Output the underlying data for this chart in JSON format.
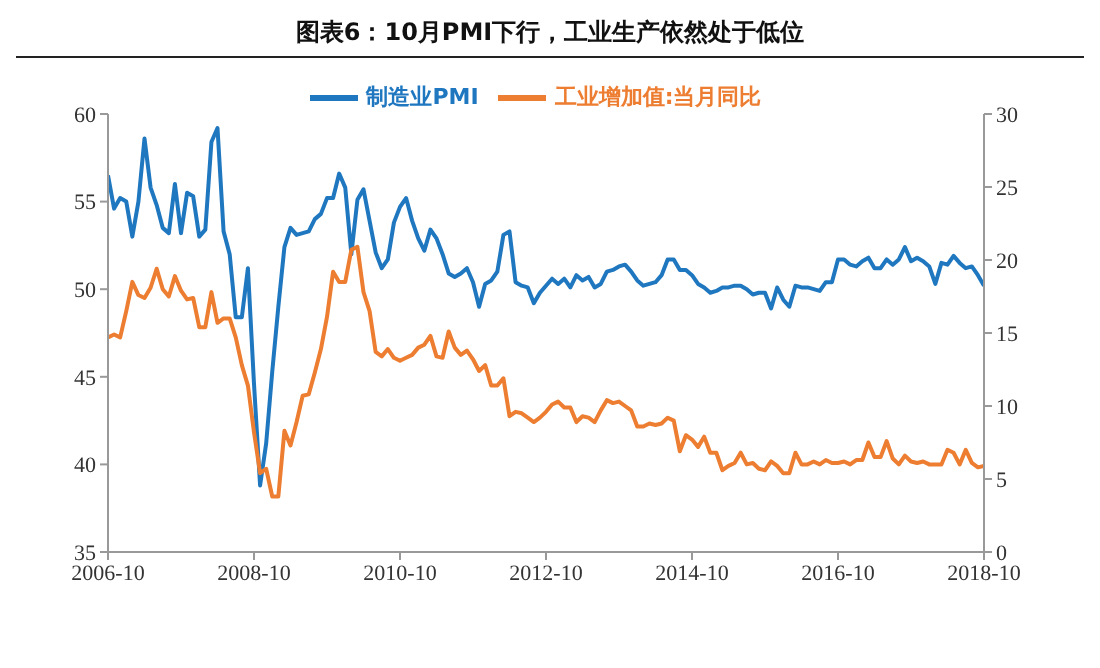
{
  "chart_data": {
    "type": "line",
    "title": "图表6：10月PMI下行，工业生产依然处于低位",
    "x": [
      "2006-10",
      "2006-11",
      "2006-12",
      "2007-01",
      "2007-02",
      "2007-03",
      "2007-04",
      "2007-05",
      "2007-06",
      "2007-07",
      "2007-08",
      "2007-09",
      "2007-10",
      "2007-11",
      "2007-12",
      "2008-01",
      "2008-02",
      "2008-03",
      "2008-04",
      "2008-05",
      "2008-06",
      "2008-07",
      "2008-08",
      "2008-09",
      "2008-10",
      "2008-11",
      "2008-12",
      "2009-01",
      "2009-02",
      "2009-03",
      "2009-04",
      "2009-05",
      "2009-06",
      "2009-07",
      "2009-08",
      "2009-09",
      "2009-10",
      "2009-11",
      "2009-12",
      "2010-01",
      "2010-02",
      "2010-03",
      "2010-04",
      "2010-05",
      "2010-06",
      "2010-07",
      "2010-08",
      "2010-09",
      "2010-10",
      "2010-11",
      "2010-12",
      "2011-01",
      "2011-02",
      "2011-03",
      "2011-04",
      "2011-05",
      "2011-06",
      "2011-07",
      "2011-08",
      "2011-09",
      "2011-10",
      "2011-11",
      "2011-12",
      "2012-01",
      "2012-02",
      "2012-03",
      "2012-04",
      "2012-05",
      "2012-06",
      "2012-07",
      "2012-08",
      "2012-09",
      "2012-10",
      "2012-11",
      "2012-12",
      "2013-01",
      "2013-02",
      "2013-03",
      "2013-04",
      "2013-05",
      "2013-06",
      "2013-07",
      "2013-08",
      "2013-09",
      "2013-10",
      "2013-11",
      "2013-12",
      "2014-01",
      "2014-02",
      "2014-03",
      "2014-04",
      "2014-05",
      "2014-06",
      "2014-07",
      "2014-08",
      "2014-09",
      "2014-10",
      "2014-11",
      "2014-12",
      "2015-01",
      "2015-02",
      "2015-03",
      "2015-04",
      "2015-05",
      "2015-06",
      "2015-07",
      "2015-08",
      "2015-09",
      "2015-10",
      "2015-11",
      "2015-12",
      "2016-01",
      "2016-02",
      "2016-03",
      "2016-04",
      "2016-05",
      "2016-06",
      "2016-07",
      "2016-08",
      "2016-09",
      "2016-10",
      "2016-11",
      "2016-12",
      "2017-01",
      "2017-02",
      "2017-03",
      "2017-04",
      "2017-05",
      "2017-06",
      "2017-07",
      "2017-08",
      "2017-09",
      "2017-10",
      "2017-11",
      "2017-12",
      "2018-01",
      "2018-02",
      "2018-03",
      "2018-04",
      "2018-05",
      "2018-06",
      "2018-07",
      "2018-08",
      "2018-09",
      "2018-10"
    ],
    "series": [
      {
        "name": "制造业PMI",
        "color": "#1f77c0",
        "values": [
          56.5,
          54.6,
          55.2,
          55.0,
          53.0,
          55.0,
          58.6,
          55.8,
          54.8,
          53.5,
          53.2,
          56.0,
          53.2,
          55.5,
          55.3,
          53.0,
          53.4,
          58.4,
          59.2,
          53.3,
          52.0,
          48.4,
          48.4,
          51.2,
          44.6,
          38.8,
          41.2,
          45.3,
          49.0,
          52.4,
          53.5,
          53.1,
          53.2,
          53.3,
          54.0,
          54.3,
          55.2,
          55.2,
          56.6,
          55.8,
          52.0,
          55.1,
          55.7,
          53.9,
          52.1,
          51.2,
          51.7,
          53.8,
          54.7,
          55.2,
          53.9,
          52.9,
          52.2,
          53.4,
          52.9,
          52.0,
          50.9,
          50.7,
          50.9,
          51.2,
          50.4,
          49.0,
          50.3,
          50.5,
          51.0,
          53.1,
          53.3,
          50.4,
          50.2,
          50.1,
          49.2,
          49.8,
          50.2,
          50.6,
          50.3,
          50.6,
          50.1,
          50.8,
          50.5,
          50.7,
          50.1,
          50.3,
          51.0,
          51.1,
          51.3,
          51.4,
          51.0,
          50.5,
          50.2,
          50.3,
          50.4,
          50.8,
          51.7,
          51.7,
          51.1,
          51.1,
          50.8,
          50.3,
          50.1,
          49.8,
          49.9,
          50.1,
          50.1,
          50.2,
          50.2,
          50.0,
          49.7,
          49.8,
          49.8,
          48.9,
          50.1,
          49.4,
          49.0,
          50.2,
          50.1,
          50.1,
          50.0,
          49.9,
          50.4,
          50.4,
          51.7,
          51.7,
          51.4,
          51.3,
          51.6,
          51.8,
          51.2,
          51.2,
          51.7,
          51.4,
          51.7,
          52.4,
          51.6,
          51.8,
          51.6,
          51.3,
          50.3,
          51.5,
          51.4,
          51.9,
          51.5,
          51.2,
          51.3,
          50.8,
          50.2
        ]
      },
      {
        "name": "工业增加值:当月同比",
        "color": "#ed7d31",
        "axis": "y2",
        "values": [
          14.7,
          14.9,
          14.7,
          16.5,
          18.5,
          17.6,
          17.4,
          18.1,
          19.4,
          18.0,
          17.5,
          18.9,
          17.9,
          17.3,
          17.4,
          15.4,
          15.4,
          17.8,
          15.7,
          16.0,
          16.0,
          14.7,
          12.8,
          11.4,
          8.2,
          5.4,
          5.7,
          3.8,
          3.8,
          8.3,
          7.3,
          8.9,
          10.7,
          10.8,
          12.3,
          13.9,
          16.1,
          19.2,
          18.5,
          18.5,
          20.7,
          20.9,
          17.8,
          16.5,
          13.7,
          13.4,
          13.9,
          13.3,
          13.1,
          13.3,
          13.5,
          14.0,
          14.2,
          14.8,
          13.4,
          13.3,
          15.1,
          14.0,
          13.5,
          13.8,
          13.2,
          12.4,
          12.8,
          11.4,
          11.4,
          11.9,
          9.3,
          9.6,
          9.5,
          9.2,
          8.9,
          9.2,
          9.6,
          10.1,
          10.3,
          9.9,
          9.9,
          8.9,
          9.3,
          9.2,
          8.9,
          9.7,
          10.4,
          10.2,
          10.3,
          10.0,
          9.7,
          8.6,
          8.6,
          8.8,
          8.7,
          8.8,
          9.2,
          9.0,
          6.9,
          8.0,
          7.7,
          7.2,
          7.9,
          6.8,
          6.8,
          5.6,
          5.9,
          6.1,
          6.8,
          6.0,
          6.1,
          5.7,
          5.6,
          6.2,
          5.9,
          5.4,
          5.4,
          6.8,
          6.0,
          6.0,
          6.2,
          6.0,
          6.3,
          6.1,
          6.1,
          6.2,
          6.0,
          6.3,
          6.3,
          7.5,
          6.5,
          6.5,
          7.6,
          6.4,
          6.0,
          6.6,
          6.2,
          6.1,
          6.2,
          6.0,
          6.0,
          6.0,
          7.0,
          6.8,
          6.0,
          7.0,
          6.1,
          5.8,
          5.9
        ]
      }
    ],
    "xlim": [
      "2006-10",
      "2018-10"
    ],
    "xticks": [
      "2006-10",
      "2008-10",
      "2010-10",
      "2012-10",
      "2014-10",
      "2016-10",
      "2018-10"
    ],
    "ylim": [
      35,
      60
    ],
    "yticks": [
      35,
      40,
      45,
      50,
      55,
      60
    ],
    "y2lim": [
      0,
      30
    ],
    "y2ticks": [
      0,
      5,
      10,
      15,
      20,
      25,
      30
    ],
    "grid": false,
    "legend": "top",
    "marker": "none",
    "line_style": "solid"
  }
}
